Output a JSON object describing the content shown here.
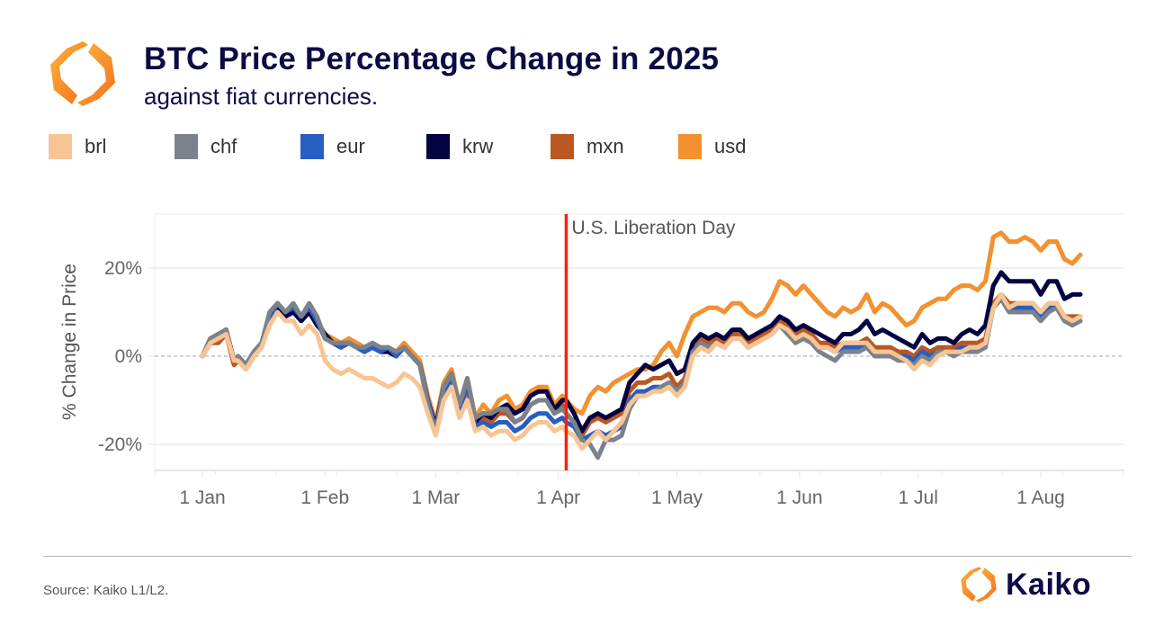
{
  "header": {
    "title": "BTC Price Percentage Change in 2025",
    "subtitle": "against fiat currencies."
  },
  "legend": [
    {
      "label": "brl",
      "color": "#f7c594"
    },
    {
      "label": "chf",
      "color": "#7b828c"
    },
    {
      "label": "eur",
      "color": "#285ec0"
    },
    {
      "label": "krw",
      "color": "#030342"
    },
    {
      "label": "mxn",
      "color": "#bb5723"
    },
    {
      "label": "usd",
      "color": "#f39130"
    }
  ],
  "footer": {
    "source": "Source: Kaiko L1/L2.",
    "brand": "Kaiko"
  },
  "chart_data": {
    "type": "line",
    "title": "BTC Price Percentage Change in 2025",
    "subtitle": "against fiat currencies.",
    "xlabel": "",
    "ylabel": "% Change in Price",
    "x_unit": "day of year 2025 (0 = 1 Jan)",
    "xlim": [
      -12,
      235
    ],
    "ylim": [
      -26,
      32
    ],
    "x_ticks": [
      {
        "label": "1 Jan",
        "day": 0
      },
      {
        "label": "1 Feb",
        "day": 31
      },
      {
        "label": "1 Mar",
        "day": 59
      },
      {
        "label": "1 Apr",
        "day": 90
      },
      {
        "label": "1 May",
        "day": 120
      },
      {
        "label": "1 Jun",
        "day": 151
      },
      {
        "label": "1 Jul",
        "day": 181
      },
      {
        "label": "1 Aug",
        "day": 212
      }
    ],
    "y_ticks": [
      {
        "label": "20%",
        "value": 20
      },
      {
        "label": "0%",
        "value": 0
      },
      {
        "label": "-20%",
        "value": -20
      }
    ],
    "grid": true,
    "zero_line": "dashed",
    "legend_position": "top-left",
    "annotations": [
      {
        "label": "U.S. Liberation Day",
        "day": 92,
        "type": "vertical-line",
        "color": "#f5230c"
      }
    ],
    "x": [
      0,
      2,
      4,
      6,
      8,
      9,
      11,
      13,
      15,
      17,
      19,
      21,
      23,
      25,
      27,
      29,
      31,
      33,
      35,
      37,
      39,
      41,
      43,
      45,
      47,
      49,
      51,
      53,
      55,
      57,
      59,
      61,
      63,
      65,
      67,
      69,
      71,
      73,
      75,
      77,
      79,
      81,
      83,
      85,
      87,
      89,
      91,
      92,
      94,
      96,
      98,
      100,
      102,
      104,
      106,
      108,
      110,
      112,
      114,
      116,
      118,
      120,
      122,
      124,
      126,
      128,
      130,
      132,
      134,
      136,
      138,
      140,
      142,
      144,
      146,
      148,
      150,
      152,
      154,
      156,
      158,
      160,
      162,
      164,
      166,
      168,
      170,
      172,
      174,
      176,
      178,
      180,
      182,
      184,
      186,
      188,
      190,
      192,
      194,
      196,
      198,
      200,
      202,
      204,
      206,
      208,
      210,
      212,
      214,
      216,
      218,
      220,
      222
    ],
    "series": [
      {
        "name": "usd",
        "color": "#f39130",
        "values": [
          0,
          4,
          5,
          6,
          -1,
          0,
          -2,
          1,
          3,
          9,
          12,
          10,
          11,
          9,
          11,
          8,
          5,
          4,
          3,
          4,
          3,
          2,
          3,
          2,
          2,
          1,
          3,
          1,
          -1,
          -9,
          -15,
          -6,
          -3,
          -11,
          -5,
          -14,
          -11,
          -13,
          -10,
          -9,
          -12,
          -11,
          -8,
          -7,
          -7,
          -11,
          -9,
          -10,
          -12,
          -13,
          -9,
          -7,
          -8,
          -6,
          -5,
          -4,
          -3,
          -3,
          -2,
          1,
          3,
          0,
          5,
          9,
          10,
          11,
          11,
          10,
          12,
          12,
          10,
          9,
          10,
          13,
          17,
          16,
          14,
          16,
          14,
          12,
          10,
          9,
          11,
          10,
          11,
          14,
          10,
          12,
          11,
          9,
          7,
          8,
          11,
          12,
          13,
          13,
          15,
          16,
          16,
          15,
          17,
          27,
          28,
          26,
          26,
          27,
          26,
          24,
          26,
          26,
          22,
          21,
          23,
          25,
          26
        ]
      },
      {
        "name": "krw",
        "color": "#030342",
        "values": [
          0,
          3,
          4,
          6,
          -1,
          0,
          -2,
          1,
          3,
          8,
          11,
          9,
          10,
          8,
          10,
          7,
          5,
          3,
          2,
          3,
          2,
          1,
          2,
          1,
          1,
          0,
          2,
          0,
          -2,
          -10,
          -16,
          -7,
          -4,
          -12,
          -6,
          -15,
          -13,
          -14,
          -12,
          -11,
          -13,
          -12,
          -9,
          -8,
          -8,
          -12,
          -10,
          -10,
          -13,
          -17,
          -14,
          -13,
          -14,
          -13,
          -12,
          -6,
          -4,
          -2,
          -3,
          -2,
          -1,
          -4,
          -3,
          3,
          5,
          4,
          5,
          4,
          6,
          6,
          4,
          5,
          6,
          7,
          9,
          8,
          6,
          7,
          6,
          5,
          4,
          3,
          5,
          5,
          6,
          8,
          5,
          6,
          5,
          4,
          3,
          2,
          5,
          3,
          4,
          4,
          3,
          5,
          6,
          5,
          7,
          16,
          19,
          17,
          17,
          17,
          17,
          14,
          17,
          17,
          13,
          14,
          14,
          16,
          18
        ]
      },
      {
        "name": "mxn",
        "color": "#bb5723",
        "values": [
          0,
          3,
          3,
          5,
          -2,
          -1,
          -3,
          0,
          2,
          8,
          11,
          9,
          10,
          8,
          10,
          8,
          5,
          3,
          2,
          3,
          2,
          1,
          2,
          1,
          1,
          0,
          2,
          0,
          -2,
          -10,
          -17,
          -8,
          -5,
          -13,
          -7,
          -16,
          -14,
          -15,
          -13,
          -13,
          -15,
          -14,
          -11,
          -10,
          -10,
          -13,
          -11,
          -13,
          -15,
          -18,
          -15,
          -14,
          -15,
          -14,
          -13,
          -8,
          -6,
          -6,
          -5,
          -5,
          -4,
          -7,
          -5,
          2,
          4,
          3,
          4,
          3,
          5,
          5,
          3,
          4,
          5,
          6,
          8,
          7,
          5,
          6,
          5,
          3,
          3,
          2,
          3,
          3,
          3,
          4,
          2,
          2,
          2,
          1,
          1,
          0,
          2,
          1,
          2,
          2,
          2,
          3,
          3,
          3,
          4,
          12,
          14,
          12,
          12,
          12,
          12,
          10,
          12,
          12,
          9,
          9,
          9,
          10,
          11
        ]
      },
      {
        "name": "eur",
        "color": "#285ec0",
        "values": [
          0,
          4,
          5,
          6,
          -1,
          0,
          -2,
          1,
          3,
          9,
          12,
          10,
          11,
          9,
          11,
          8,
          4,
          3,
          2,
          3,
          2,
          1,
          2,
          1,
          2,
          0,
          2,
          0,
          -2,
          -10,
          -17,
          -8,
          -5,
          -12,
          -6,
          -16,
          -15,
          -16,
          -15,
          -15,
          -17,
          -16,
          -14,
          -13,
          -13,
          -15,
          -14,
          -15,
          -16,
          -19,
          -18,
          -17,
          -18,
          -17,
          -16,
          -10,
          -8,
          -8,
          -7,
          -7,
          -6,
          -8,
          -6,
          1,
          3,
          2,
          3,
          2,
          4,
          4,
          2,
          3,
          4,
          5,
          7,
          6,
          4,
          5,
          4,
          2,
          2,
          1,
          2,
          2,
          2,
          3,
          1,
          1,
          1,
          0,
          0,
          -1,
          1,
          0,
          1,
          1,
          1,
          2,
          2,
          2,
          3,
          11,
          13,
          11,
          11,
          11,
          11,
          9,
          11,
          11,
          8,
          8,
          8,
          9,
          10
        ]
      },
      {
        "name": "chf",
        "color": "#7b828c",
        "values": [
          0,
          4,
          5,
          6,
          -1,
          0,
          -2,
          1,
          3,
          10,
          12,
          10,
          12,
          9,
          12,
          9,
          4,
          3,
          3,
          3,
          2,
          2,
          3,
          2,
          2,
          1,
          2,
          0,
          -2,
          -11,
          -17,
          -7,
          -4,
          -11,
          -5,
          -14,
          -13,
          -13,
          -12,
          -12,
          -15,
          -14,
          -11,
          -10,
          -10,
          -13,
          -12,
          -13,
          -15,
          -19,
          -20,
          -23,
          -19,
          -19,
          -18,
          -12,
          -9,
          -9,
          -8,
          -7,
          -6,
          -8,
          -6,
          1,
          3,
          2,
          3,
          2,
          4,
          4,
          2,
          3,
          4,
          5,
          7,
          5,
          3,
          4,
          3,
          1,
          0,
          -1,
          1,
          1,
          1,
          2,
          0,
          0,
          0,
          -1,
          -1,
          -2,
          0,
          -1,
          1,
          1,
          0,
          1,
          1,
          1,
          2,
          11,
          13,
          10,
          10,
          10,
          10,
          8,
          10,
          11,
          8,
          7,
          8,
          10,
          12
        ]
      },
      {
        "name": "brl",
        "color": "#f7c594",
        "values": [
          0,
          3,
          4,
          5,
          -1,
          -1,
          -3,
          0,
          2,
          7,
          10,
          8,
          8,
          5,
          7,
          5,
          -1,
          -3,
          -4,
          -3,
          -4,
          -5,
          -5,
          -6,
          -7,
          -6,
          -4,
          -5,
          -7,
          -13,
          -18,
          -10,
          -7,
          -14,
          -10,
          -17,
          -16,
          -18,
          -17,
          -17,
          -19,
          -18,
          -16,
          -15,
          -15,
          -17,
          -16,
          -17,
          -18,
          -21,
          -19,
          -17,
          -19,
          -17,
          -15,
          -11,
          -9,
          -9,
          -8,
          -8,
          -7,
          -9,
          -7,
          0,
          2,
          1,
          3,
          2,
          4,
          4,
          2,
          3,
          4,
          5,
          7,
          6,
          4,
          5,
          4,
          2,
          2,
          1,
          3,
          3,
          3,
          3,
          1,
          1,
          1,
          0,
          -1,
          -3,
          -1,
          -2,
          0,
          1,
          1,
          1,
          2,
          2,
          3,
          11,
          14,
          11,
          12,
          12,
          12,
          10,
          12,
          12,
          9,
          8,
          9,
          9,
          10
        ]
      }
    ]
  }
}
